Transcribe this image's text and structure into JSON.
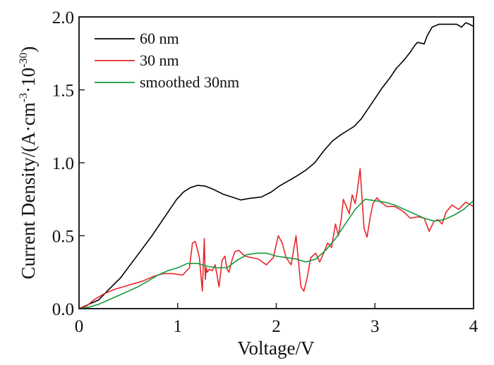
{
  "chart_data": {
    "type": "line",
    "title": "",
    "xlabel": "Voltage/V",
    "ylabel": {
      "prefix": "Current Density/(A·cm",
      "sup1": "-3",
      "mid": "·10",
      "sup2": "-30",
      "suffix": ")"
    },
    "xlim": [
      0,
      4
    ],
    "ylim": [
      0,
      2.0
    ],
    "xticks": [
      0,
      1,
      2,
      3,
      4
    ],
    "xtick_labels": [
      "0",
      "1",
      "2",
      "3",
      "4"
    ],
    "yticks": [
      0,
      0.5,
      1.0,
      1.5,
      2.0
    ],
    "ytick_labels": [
      "0.0",
      "0.5",
      "1.0",
      "1.5",
      "2.0"
    ],
    "grid": false,
    "legend_position": "top-left",
    "series": [
      {
        "name": "60 nm",
        "color": "#000000",
        "x": [
          0,
          0.1,
          0.2,
          0.3,
          0.42,
          0.53,
          0.63,
          0.74,
          0.85,
          0.93,
          0.99,
          1.06,
          1.13,
          1.2,
          1.28,
          1.37,
          1.46,
          1.55,
          1.64,
          1.72,
          1.85,
          1.95,
          2.03,
          2.12,
          2.21,
          2.3,
          2.39,
          2.48,
          2.57,
          2.65,
          2.72,
          2.79,
          2.86,
          2.93,
          3.0,
          3.07,
          3.15,
          3.22,
          3.29,
          3.36,
          3.4,
          3.43,
          3.47,
          3.5,
          3.53,
          3.58,
          3.65,
          3.75,
          3.83,
          3.88,
          3.92,
          3.96,
          4.0
        ],
        "y": [
          0,
          0.03,
          0.06,
          0.13,
          0.21,
          0.31,
          0.4,
          0.5,
          0.61,
          0.69,
          0.75,
          0.8,
          0.83,
          0.845,
          0.84,
          0.815,
          0.785,
          0.765,
          0.745,
          0.755,
          0.765,
          0.8,
          0.84,
          0.875,
          0.91,
          0.95,
          1.0,
          1.08,
          1.15,
          1.19,
          1.22,
          1.25,
          1.3,
          1.37,
          1.44,
          1.51,
          1.58,
          1.65,
          1.7,
          1.76,
          1.8,
          1.825,
          1.82,
          1.815,
          1.87,
          1.93,
          1.95,
          1.95,
          1.95,
          1.93,
          1.96,
          1.95,
          1.935
        ]
      },
      {
        "name": "30 nm",
        "color": "#e8262a",
        "x": [
          0,
          0.08,
          0.15,
          0.25,
          0.35,
          0.45,
          0.55,
          0.65,
          0.75,
          0.85,
          0.95,
          1.05,
          1.12,
          1.15,
          1.18,
          1.22,
          1.25,
          1.27,
          1.28,
          1.29,
          1.3,
          1.32,
          1.35,
          1.38,
          1.42,
          1.45,
          1.48,
          1.5,
          1.52,
          1.55,
          1.58,
          1.62,
          1.68,
          1.75,
          1.82,
          1.9,
          1.97,
          2.02,
          2.06,
          2.1,
          2.15,
          2.2,
          2.25,
          2.28,
          2.31,
          2.35,
          2.4,
          2.44,
          2.48,
          2.52,
          2.56,
          2.6,
          2.63,
          2.66,
          2.68,
          2.71,
          2.74,
          2.77,
          2.8,
          2.82,
          2.85,
          2.87,
          2.89,
          2.92,
          2.95,
          2.98,
          3.02,
          3.06,
          3.12,
          3.2,
          3.28,
          3.36,
          3.44,
          3.5,
          3.55,
          3.6,
          3.64,
          3.68,
          3.72,
          3.78,
          3.85,
          3.92,
          4.0
        ],
        "y": [
          0,
          0.02,
          0.06,
          0.1,
          0.13,
          0.15,
          0.17,
          0.19,
          0.22,
          0.24,
          0.24,
          0.23,
          0.28,
          0.45,
          0.46,
          0.35,
          0.12,
          0.48,
          0.2,
          0.28,
          0.25,
          0.27,
          0.26,
          0.3,
          0.15,
          0.33,
          0.36,
          0.27,
          0.25,
          0.33,
          0.39,
          0.4,
          0.36,
          0.35,
          0.34,
          0.3,
          0.35,
          0.5,
          0.45,
          0.35,
          0.3,
          0.5,
          0.15,
          0.12,
          0.2,
          0.35,
          0.38,
          0.32,
          0.38,
          0.45,
          0.42,
          0.58,
          0.5,
          0.62,
          0.75,
          0.7,
          0.65,
          0.78,
          0.72,
          0.8,
          0.96,
          0.75,
          0.55,
          0.49,
          0.62,
          0.72,
          0.76,
          0.73,
          0.7,
          0.7,
          0.67,
          0.62,
          0.63,
          0.62,
          0.53,
          0.6,
          0.61,
          0.58,
          0.66,
          0.71,
          0.68,
          0.73,
          0.7
        ]
      },
      {
        "name": "smoothed 30nm",
        "color": "#16993f",
        "x": [
          0,
          0.1,
          0.2,
          0.3,
          0.4,
          0.5,
          0.6,
          0.7,
          0.8,
          0.9,
          1.0,
          1.1,
          1.2,
          1.3,
          1.4,
          1.5,
          1.6,
          1.7,
          1.8,
          1.9,
          2.0,
          2.1,
          2.2,
          2.3,
          2.4,
          2.5,
          2.6,
          2.7,
          2.8,
          2.9,
          3.0,
          3.1,
          3.2,
          3.3,
          3.4,
          3.5,
          3.6,
          3.7,
          3.8,
          3.9,
          4.0
        ],
        "y": [
          0,
          0.01,
          0.03,
          0.06,
          0.09,
          0.12,
          0.15,
          0.19,
          0.23,
          0.26,
          0.28,
          0.31,
          0.31,
          0.29,
          0.28,
          0.28,
          0.33,
          0.37,
          0.38,
          0.38,
          0.36,
          0.35,
          0.34,
          0.32,
          0.34,
          0.4,
          0.48,
          0.58,
          0.68,
          0.75,
          0.74,
          0.73,
          0.71,
          0.68,
          0.65,
          0.62,
          0.6,
          0.61,
          0.64,
          0.68,
          0.74
        ]
      }
    ]
  }
}
